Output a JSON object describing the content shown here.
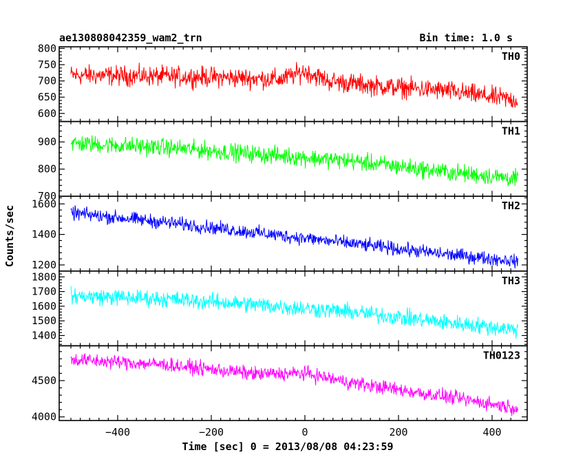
{
  "chart_data": {
    "type": "line",
    "title": "ae130808042359_wam2_trn",
    "bin_time_label": "Bin time: 1.0 s",
    "xlabel": "Time [sec] 0 = 2013/08/08 04:23:59",
    "ylabel": "Counts/sec",
    "xlim": [
      -525,
      475
    ],
    "xticks": [
      -400,
      -200,
      0,
      200,
      400
    ],
    "x_range": [
      -500,
      455
    ],
    "bin_seconds": 1.0,
    "grid": false,
    "panels": [
      {
        "name": "TH0",
        "color": "#ff0000",
        "ylim": [
          575,
          805
        ],
        "yticks": [
          600,
          650,
          700,
          750,
          800
        ],
        "trend": [
          [
            -500,
            718
          ],
          [
            -350,
            715
          ],
          [
            -200,
            712
          ],
          [
            -50,
            705
          ],
          [
            0,
            730
          ],
          [
            50,
            700
          ],
          [
            150,
            685
          ],
          [
            300,
            670
          ],
          [
            455,
            640
          ]
        ],
        "noise_amplitude": 38
      },
      {
        "name": "TH1",
        "color": "#00ff00",
        "ylim": [
          700,
          975
        ],
        "yticks": [
          700,
          800,
          900
        ],
        "trend": [
          [
            -500,
            895
          ],
          [
            -300,
            880
          ],
          [
            -100,
            855
          ],
          [
            100,
            830
          ],
          [
            300,
            790
          ],
          [
            455,
            765
          ]
        ],
        "noise_amplitude": 40
      },
      {
        "name": "TH2",
        "color": "#0000ff",
        "ylim": [
          1160,
          1650
        ],
        "yticks": [
          1200,
          1400,
          1600
        ],
        "trend": [
          [
            -500,
            1540
          ],
          [
            -300,
            1480
          ],
          [
            -100,
            1410
          ],
          [
            100,
            1340
          ],
          [
            300,
            1270
          ],
          [
            455,
            1225
          ]
        ],
        "noise_amplitude": 55
      },
      {
        "name": "TH3",
        "color": "#00ffff",
        "ylim": [
          1330,
          1840
        ],
        "yticks": [
          1400,
          1500,
          1600,
          1700,
          1800
        ],
        "trend": [
          [
            -500,
            1670
          ],
          [
            -300,
            1650
          ],
          [
            -100,
            1610
          ],
          [
            100,
            1560
          ],
          [
            300,
            1490
          ],
          [
            455,
            1440
          ]
        ],
        "noise_amplitude": 70
      },
      {
        "name": "TH0123",
        "color": "#ff00ff",
        "ylim": [
          3950,
          4980
        ],
        "yticks": [
          4000,
          4500
        ],
        "trend": [
          [
            -500,
            4790
          ],
          [
            -300,
            4720
          ],
          [
            -100,
            4590
          ],
          [
            0,
            4600
          ],
          [
            100,
            4470
          ],
          [
            300,
            4280
          ],
          [
            455,
            4120
          ]
        ],
        "noise_amplitude": 120
      }
    ]
  }
}
